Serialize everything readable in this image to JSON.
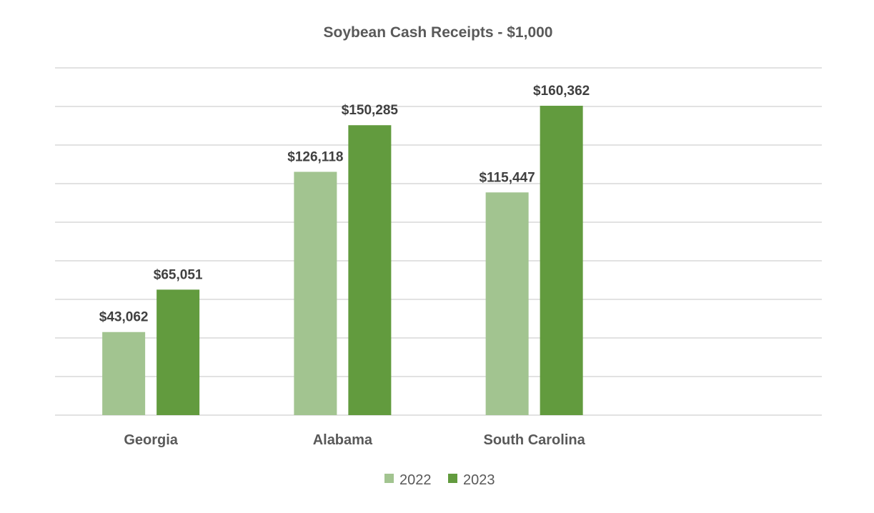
{
  "chart_data": {
    "type": "bar",
    "title": "Soybean Cash Receipts - $1,000",
    "xlabel": "",
    "ylabel": "",
    "categories": [
      "Georgia",
      "Alabama",
      "South Carolina"
    ],
    "series": [
      {
        "name": "2022",
        "values": [
          43062,
          126118,
          115447
        ],
        "labels": [
          "$43,062",
          "$126,118",
          "$115,447"
        ],
        "color": "#a2c490"
      },
      {
        "name": "2023",
        "values": [
          65051,
          150285,
          160362
        ],
        "labels": [
          "$65,051",
          "$150,285",
          "$160,362"
        ],
        "color": "#629b3e"
      }
    ],
    "ylim": [
      0,
      180000
    ],
    "ytick_step": 20000,
    "y_axis_labels_visible": false,
    "grid": true,
    "legend": "bottom"
  }
}
